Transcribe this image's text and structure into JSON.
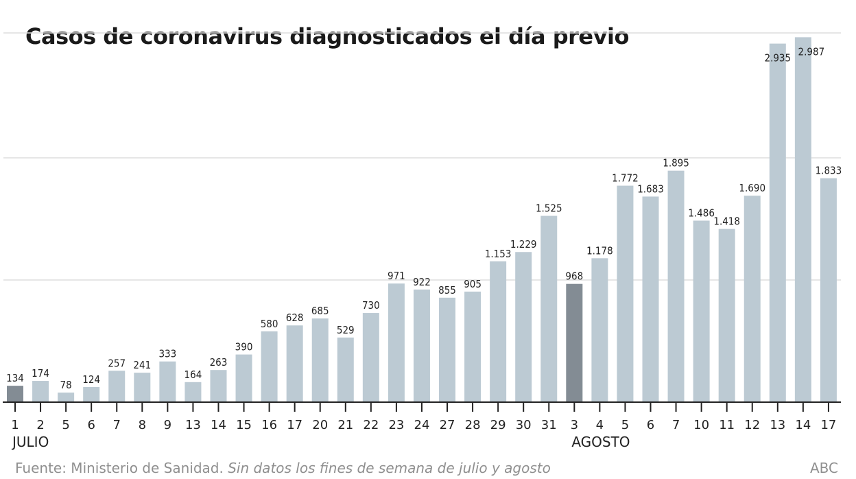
{
  "chart_data": {
    "type": "bar",
    "title": "Casos de coronavirus diagnosticados el día previo",
    "categories": [
      "1",
      "2",
      "5",
      "6",
      "7",
      "8",
      "9",
      "13",
      "14",
      "15",
      "16",
      "17",
      "20",
      "21",
      "22",
      "23",
      "24",
      "27",
      "28",
      "29",
      "30",
      "31",
      "3",
      "4",
      "5",
      "6",
      "7",
      "10",
      "11",
      "12",
      "13",
      "14",
      "17"
    ],
    "values": [
      134,
      174,
      78,
      124,
      257,
      241,
      333,
      164,
      263,
      390,
      580,
      628,
      685,
      529,
      730,
      971,
      922,
      855,
      905,
      1153,
      1229,
      1525,
      968,
      1178,
      1772,
      1683,
      1895,
      1486,
      1418,
      1690,
      2935,
      2987,
      1833
    ],
    "value_labels": [
      "134",
      "174",
      "78",
      "124",
      "257",
      "241",
      "333",
      "164",
      "263",
      "390",
      "580",
      "628",
      "685",
      "529",
      "730",
      "971",
      "922",
      "855",
      "905",
      "1.153",
      "1.229",
      "1.525",
      "968",
      "1.178",
      "1.772",
      "1.683",
      "1.895",
      "1.486",
      "1.418",
      "1.690",
      "2.935",
      "2.987",
      "1.833"
    ],
    "highlighted_indices": [
      0,
      22
    ],
    "month_labels": [
      {
        "label": "JULIO",
        "index": 0
      },
      {
        "label": "AGOSTO",
        "index": 22
      }
    ],
    "gridlines": [
      1000,
      2000,
      3000
    ],
    "ylim": [
      0,
      3000
    ],
    "xlabel": "",
    "ylabel": "",
    "colors": {
      "bar": "#bccad3",
      "highlight": "#838c94",
      "grid": "#dddddd",
      "axis": "#222222"
    }
  },
  "footer": {
    "source": "Fuente: Ministerio de Sanidad.",
    "note": "Sin datos los fines de semana de julio y agosto",
    "brand": "ABC"
  }
}
